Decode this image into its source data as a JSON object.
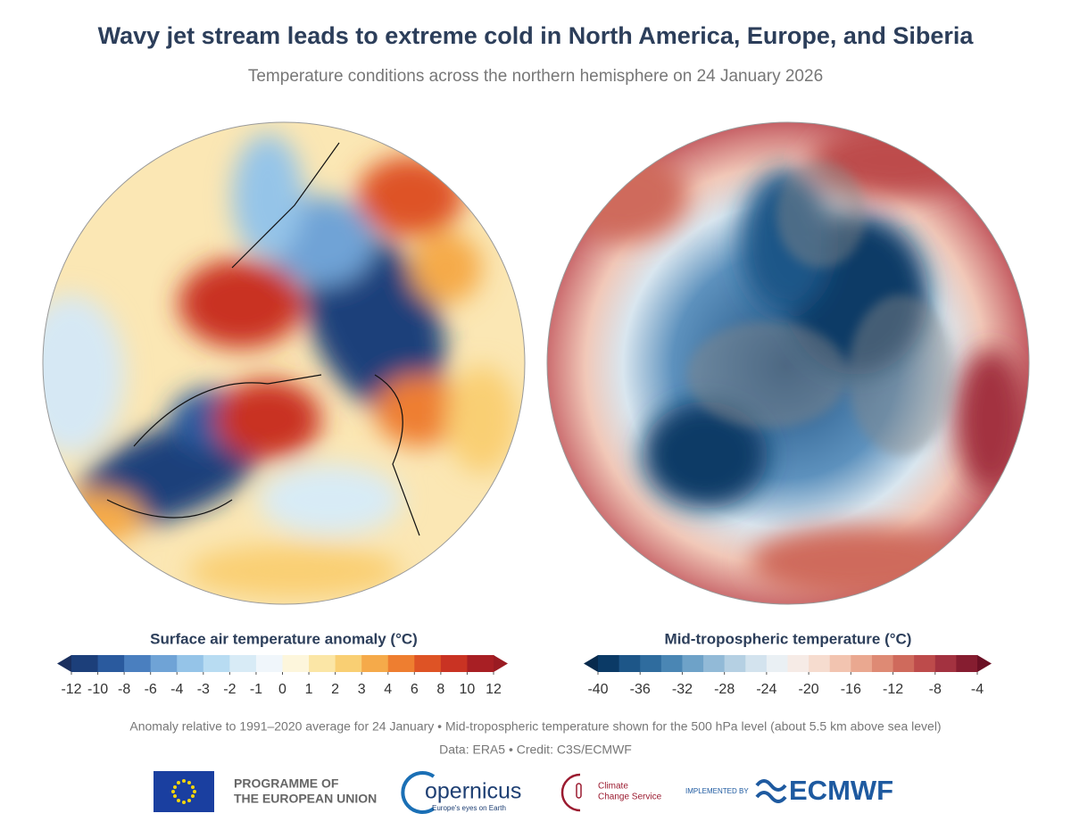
{
  "title": "Wavy jet stream leads to extreme cold in North America, Europe, and Siberia",
  "subtitle": "Temperature conditions across the northern hemisphere on 24 January 2026",
  "maps": [
    {
      "colorbar": {
        "title": "Surface air temperature anomaly (°C)",
        "spacing": "even",
        "ticks": [
          -12,
          -10,
          -8,
          -6,
          -4,
          -3,
          -2,
          -1,
          0,
          1,
          2,
          3,
          4,
          6,
          8,
          10,
          12
        ],
        "under": "#1a2f5e",
        "over": "#9a1b22",
        "colors": [
          "#1c3f7a",
          "#2a5a9e",
          "#4a7fbf",
          "#6fa3d6",
          "#95c4e8",
          "#b8dcf2",
          "#d8ebf6",
          "#f0f6fb",
          "#fdf6dc",
          "#fbe6a6",
          "#f9cf73",
          "#f5aa4a",
          "#ee7e30",
          "#de5325",
          "#c93323",
          "#a81f24"
        ]
      }
    },
    {
      "colorbar": {
        "title": "Mid-tropospheric temperature (°C)",
        "spacing": "linear",
        "lim": [
          -40,
          -4
        ],
        "ticks": [
          -40,
          -36,
          -32,
          -28,
          -24,
          -20,
          -16,
          -12,
          -8,
          -4
        ],
        "under": "#082a4d",
        "over": "#6b1024",
        "colors": [
          "#0b3a66",
          "#1d5688",
          "#2f6c9e",
          "#4a86b4",
          "#6ea2c8",
          "#92bad7",
          "#b5d0e3",
          "#d3e3ee",
          "#eaf0f4",
          "#f6ebe6",
          "#f6dccf",
          "#f2c4b0",
          "#eaa890",
          "#de8a74",
          "#cf6a5c",
          "#bd4b4b",
          "#a33240",
          "#861d30"
        ]
      }
    }
  ],
  "footnote": "Anomaly relative to 1991–2020 average for 24 January • Mid-tropospheric temperature shown for the 500 hPa level (about 5.5 km above sea level)",
  "source": "Data: ERA5 • Credit: C3S/ECMWF",
  "logos": {
    "eu": [
      "PROGRAMME OF",
      "THE EUROPEAN UNION"
    ],
    "copernicus": "opernicus",
    "copernicus_tagline": "Europe's eyes on Earth",
    "c3s": [
      "Climate",
      "Change Service"
    ],
    "implemented": "IMPLEMENTED BY",
    "ecmwf": "ECMWF"
  }
}
